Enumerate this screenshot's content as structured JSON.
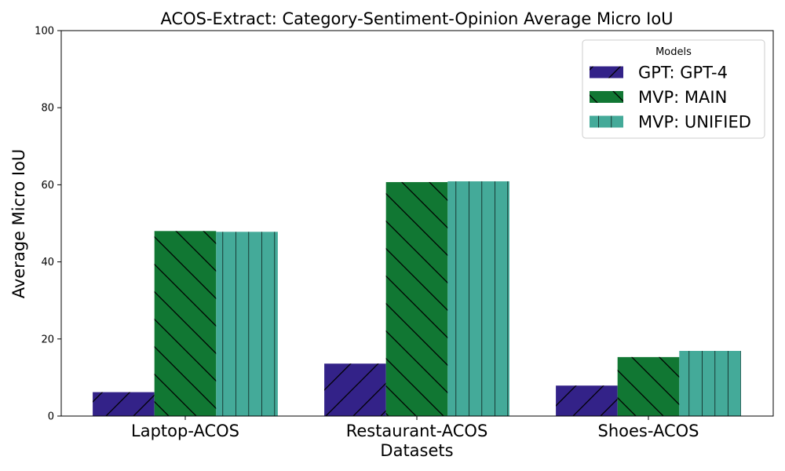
{
  "chart_data": {
    "type": "bar",
    "title": "ACOS-Extract: Category-Sentiment-Opinion Average Micro IoU",
    "xlabel": "Datasets",
    "ylabel": "Average Micro IoU",
    "ylim": [
      0,
      100
    ],
    "yticks": [
      0,
      20,
      40,
      60,
      80,
      100
    ],
    "categories": [
      "Laptop-ACOS",
      "Restaurant-ACOS",
      "Shoes-ACOS"
    ],
    "series": [
      {
        "name": "GPT: GPT-4",
        "color": "#332288",
        "hatch": "forward-diagonal",
        "values": [
          6.2,
          13.6,
          7.9
        ]
      },
      {
        "name": "MVP: MAIN",
        "color": "#117733",
        "hatch": "back-diagonal",
        "values": [
          48.0,
          60.7,
          15.3
        ]
      },
      {
        "name": "MVP: UNIFIED",
        "color": "#44AA99",
        "hatch": "vertical",
        "values": [
          47.8,
          60.9,
          16.9
        ]
      }
    ],
    "legend": {
      "title": "Models",
      "position": "upper-right"
    },
    "grid": false
  }
}
